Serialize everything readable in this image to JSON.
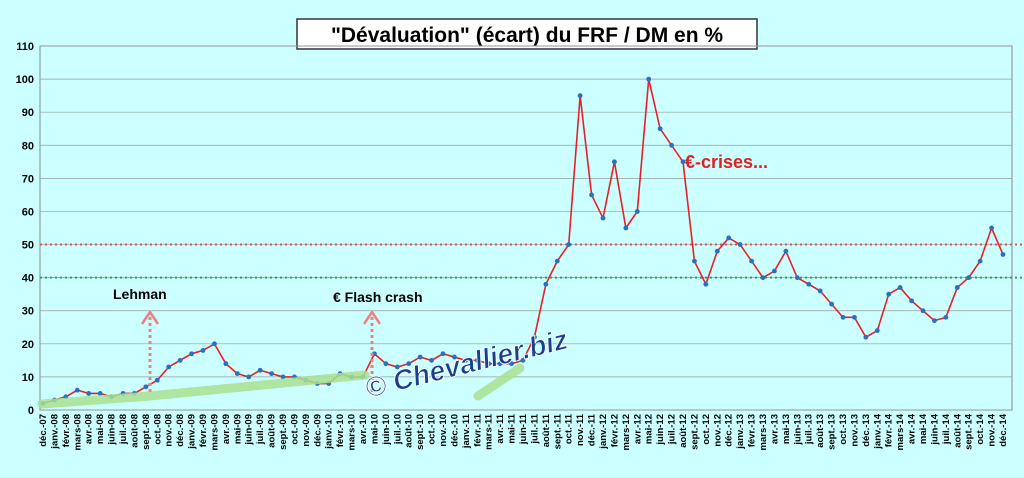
{
  "chart_data": {
    "type": "line",
    "title": "\"Dévaluation\" (écart) du FRF / DM en %",
    "categories": [
      "déc.-07",
      "janv.-08",
      "févr.-08",
      "mars-08",
      "avr.-08",
      "mai-08",
      "juin-08",
      "juil.-08",
      "août-08",
      "sept.-08",
      "oct.-08",
      "nov.-08",
      "déc.-08",
      "janv.-09",
      "févr.-09",
      "mars-09",
      "avr.-09",
      "mai-09",
      "juin-09",
      "juil.-09",
      "août-09",
      "sept.-09",
      "oct.-09",
      "nov.-09",
      "déc.-09",
      "janv.-10",
      "févr.-10",
      "mars-10",
      "avr.-10",
      "mai-10",
      "juin-10",
      "juil.-10",
      "août-10",
      "sept.-10",
      "oct.-10",
      "nov.-10",
      "déc.-10",
      "janv.-11",
      "févr.-11",
      "mars-11",
      "avr.-11",
      "mai-11",
      "juin-11",
      "juil.-11",
      "août-11",
      "sept.-11",
      "oct.-11",
      "nov.-11",
      "déc.-11",
      "janv.-12",
      "févr.-12",
      "mars-12",
      "avr.-12",
      "mai-12",
      "juin-12",
      "juil.-12",
      "août-12",
      "sept.-12",
      "oct.-12",
      "nov.-12",
      "déc.-12",
      "janv.-13",
      "févr.-13",
      "mars-13",
      "avr.-13",
      "mai-13",
      "juin-13",
      "juil.-13",
      "août-13",
      "sept.-13",
      "oct.-13",
      "nov.-13",
      "déc.-13",
      "janv.-14",
      "févr.-14",
      "mars-14",
      "avr.-14",
      "mai-14",
      "juin-14",
      "juil.-14",
      "août-14",
      "sept.-14",
      "oct.-14",
      "nov.-14",
      "déc.-14"
    ],
    "series": [
      {
        "name": "FRF / DM",
        "color": "#e8202a",
        "marker_color": "#2a6fc0",
        "values": [
          2,
          3,
          4,
          6,
          5,
          5,
          4,
          5,
          5,
          7,
          9,
          13,
          15,
          17,
          18,
          20,
          14,
          11,
          10,
          12,
          11,
          10,
          10,
          9,
          8,
          8,
          11,
          10,
          10,
          17,
          14,
          13,
          14,
          16,
          15,
          17,
          16,
          15,
          15,
          14,
          14,
          14,
          15,
          22,
          38,
          45,
          50,
          95,
          65,
          58,
          75,
          55,
          60,
          100,
          85,
          80,
          75,
          45,
          38,
          48,
          52,
          50,
          45,
          40,
          42,
          48,
          40,
          38,
          36,
          32,
          28,
          28,
          22,
          24,
          35,
          37,
          33,
          30,
          27,
          28,
          37,
          40,
          45,
          55,
          47
        ]
      }
    ],
    "ylim": [
      0,
      110
    ],
    "yticks": [
      0,
      10,
      20,
      30,
      40,
      50,
      60,
      70,
      80,
      90,
      100,
      110
    ],
    "reference_lines": [
      {
        "value": 50,
        "color": "#e05050"
      },
      {
        "value": 40,
        "color": "#3a9a60"
      }
    ],
    "annotations": [
      {
        "text": "Lehman"
      },
      {
        "text": "€ Flash crash"
      },
      {
        "text": "€-crises..."
      }
    ],
    "watermark": "© Chevallier.biz"
  }
}
